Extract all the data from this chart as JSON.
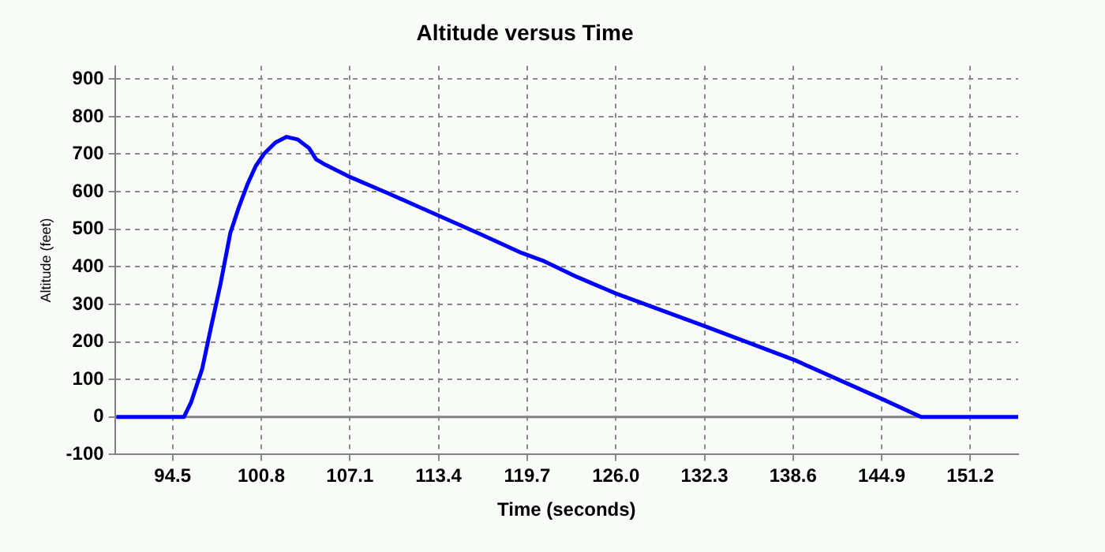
{
  "chart_data": {
    "type": "line",
    "title": "Altitude versus Time",
    "xlabel": "Time (seconds)",
    "ylabel": "Altitude (feet)",
    "x": [
      90.5,
      95.3,
      95.8,
      96.6,
      97.2,
      97.9,
      98.6,
      99.2,
      99.8,
      100.4,
      101.0,
      101.8,
      102.6,
      103.4,
      104.2,
      104.7,
      105.4,
      107.0,
      109.8,
      113.0,
      116.2,
      119.3,
      120.9,
      123.3,
      126.0,
      132.4,
      138.75,
      145.1,
      147.7,
      154.6
    ],
    "series": [
      {
        "color": "#0000ff",
        "values": [
          0,
          0,
          38,
          128,
          234,
          354,
          490,
          558,
          618,
          668,
          701,
          731,
          746,
          739,
          716,
          686,
          671,
          641,
          596,
          543,
          490,
          437,
          415,
          372,
          329,
          241,
          151,
          45,
          0,
          0
        ]
      }
    ],
    "xlim": [
      90.4,
      154.6
    ],
    "ylim": [
      -100,
      935
    ],
    "xticks": [
      94.5,
      100.8,
      107.1,
      113.4,
      119.7,
      {
        "value": 126,
        "label": "126.0"
      },
      132.3,
      138.6,
      144.9,
      151.2
    ],
    "yticks": [
      -100,
      0,
      100,
      200,
      300,
      400,
      500,
      600,
      700,
      800,
      900
    ],
    "grid": true,
    "legend": false,
    "marker": "none",
    "line_style": "solid",
    "ref_lines": [
      {
        "axis": "y",
        "value": 0,
        "color": "#808080",
        "line_style": "solid"
      }
    ]
  }
}
